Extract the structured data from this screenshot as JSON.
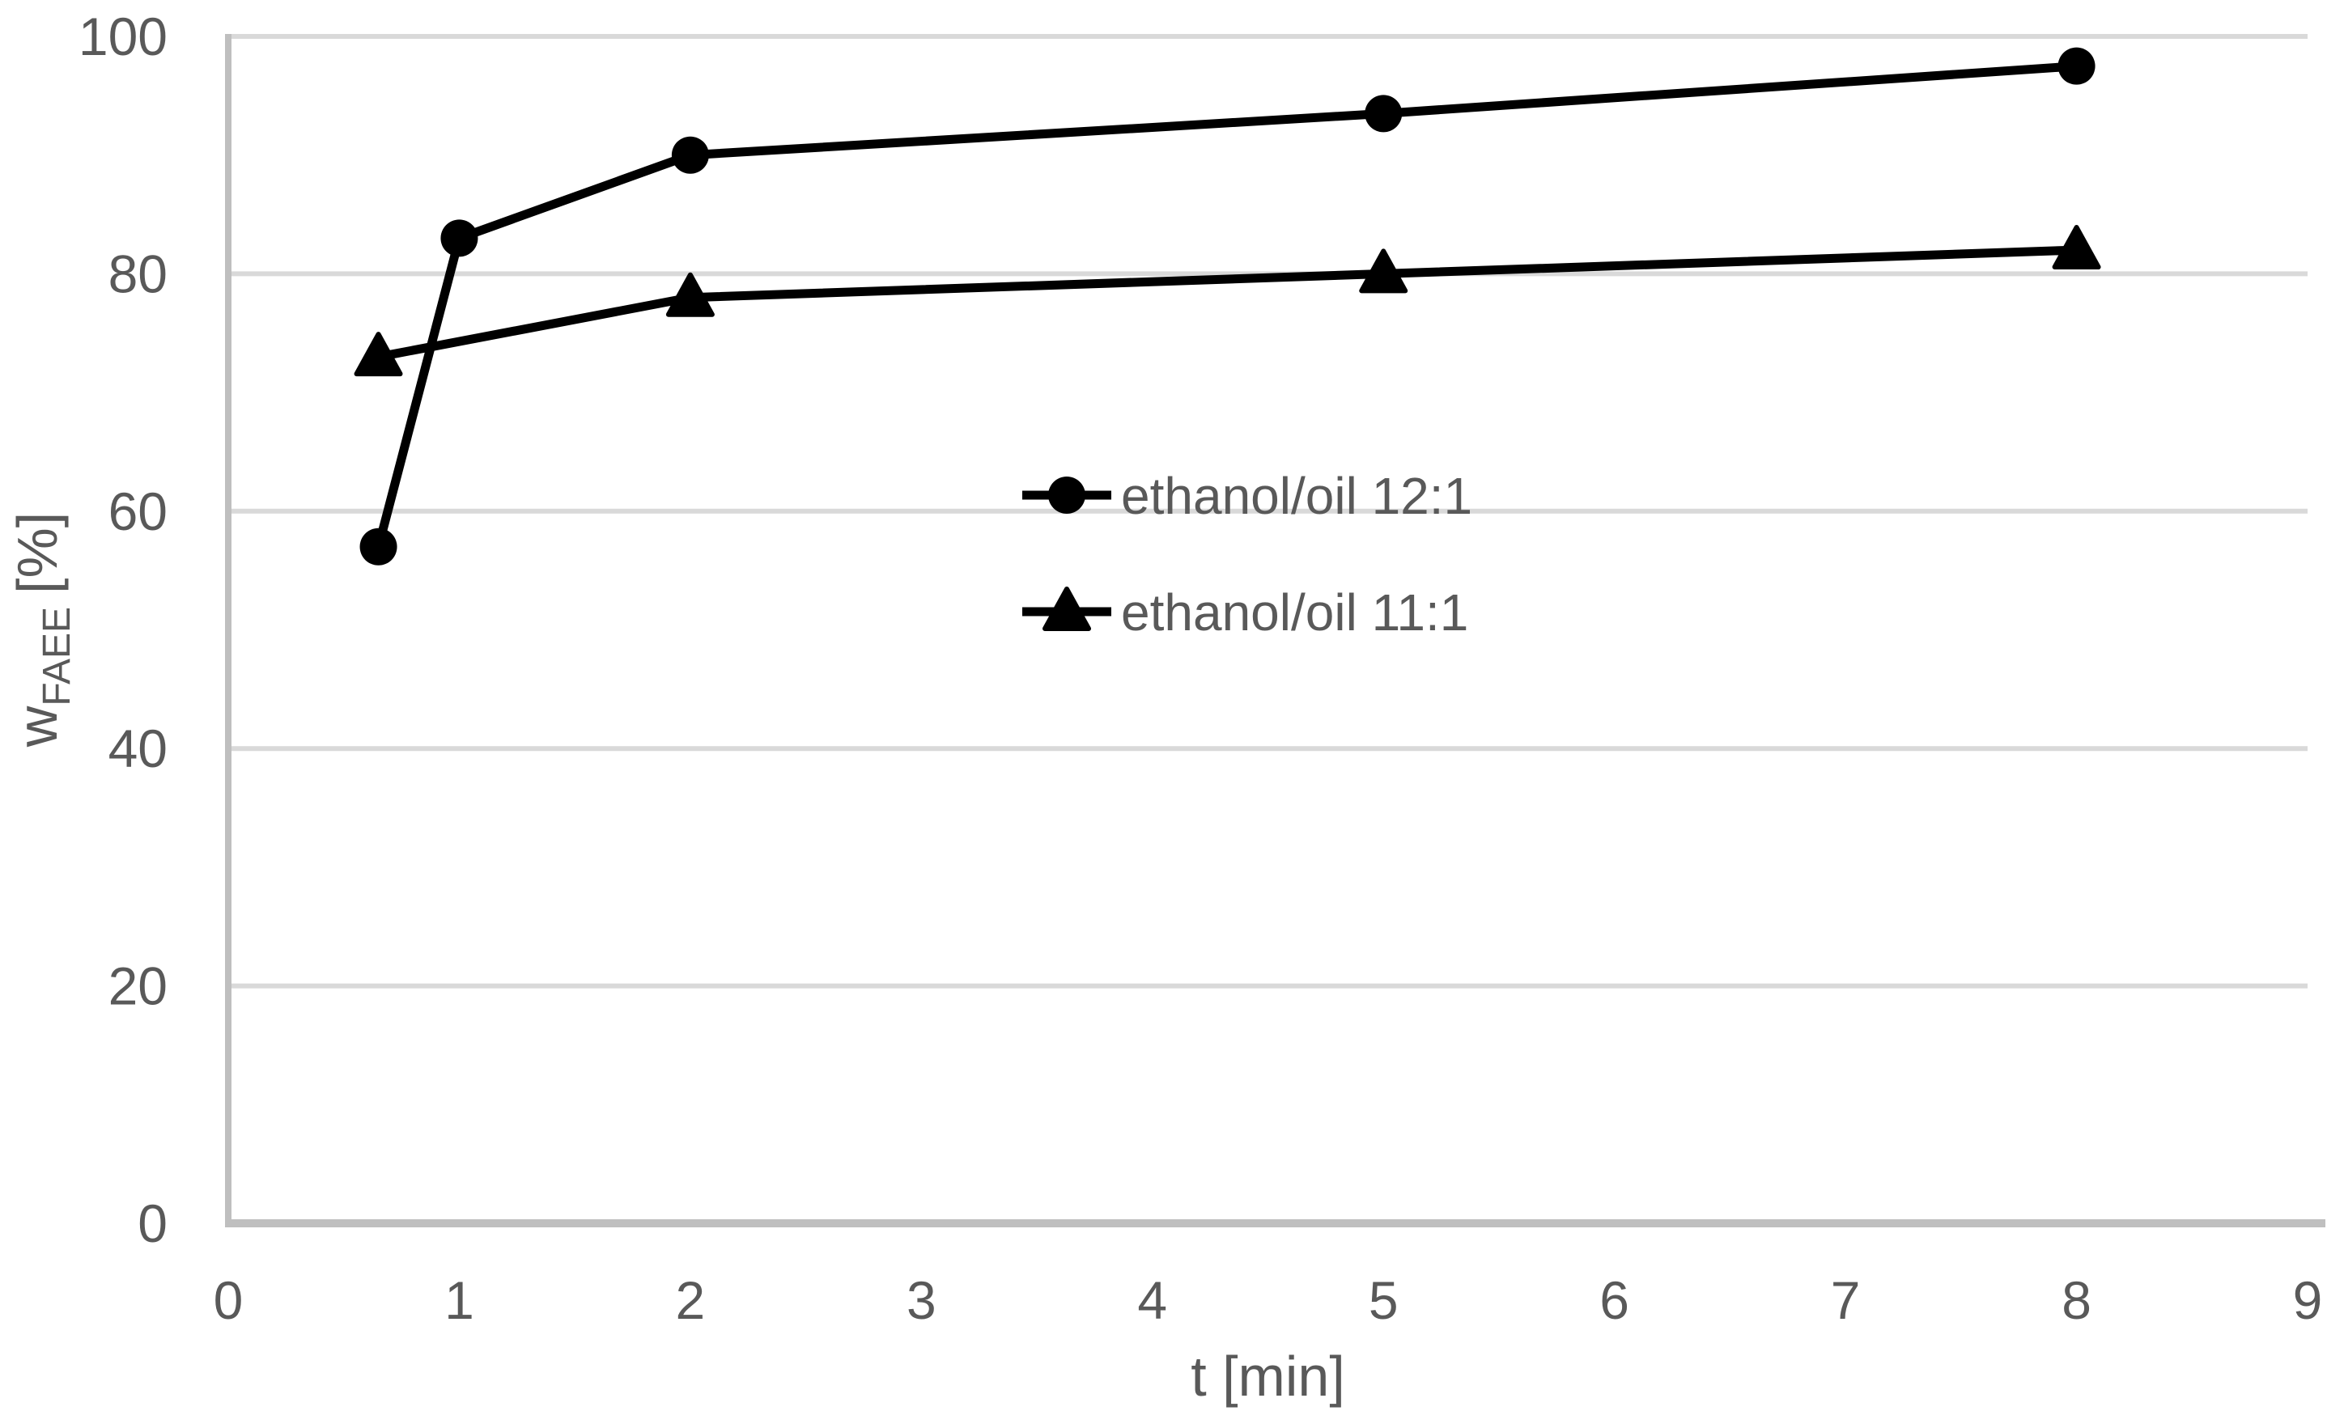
{
  "chart_data": {
    "type": "line",
    "title": "",
    "xlabel": "t [min]",
    "ylabel": "w_FAEE [%]",
    "ylabel_parts": {
      "base": "w",
      "subscript": "FAEE",
      "unit": "[%]"
    },
    "xlim": [
      0,
      9
    ],
    "ylim": [
      0,
      100
    ],
    "x_ticks": [
      0,
      1,
      2,
      3,
      4,
      5,
      6,
      7,
      8,
      9
    ],
    "y_ticks": [
      0,
      20,
      40,
      60,
      80,
      100
    ],
    "grid": "horizontal-on",
    "legend_position": "inside-center-left",
    "series": [
      {
        "name": "ethanol/oil 12:1",
        "marker": "circle",
        "color": "#000000",
        "x": [
          0.65,
          1,
          2,
          5,
          8
        ],
        "y": [
          57,
          83,
          90,
          93.5,
          97.5
        ]
      },
      {
        "name": "ethanol/oil 11:1",
        "marker": "triangle",
        "color": "#000000",
        "x": [
          0.65,
          2,
          5,
          8
        ],
        "y": [
          73,
          78,
          80,
          82
        ]
      }
    ]
  },
  "colors": {
    "series": "#000000",
    "tick_label": "#595959",
    "axis_title": "#595959",
    "legend_label": "#595959",
    "axis_line": "#BFBFBF",
    "gridline": "#D9D9D9",
    "background": "#FFFFFF"
  }
}
